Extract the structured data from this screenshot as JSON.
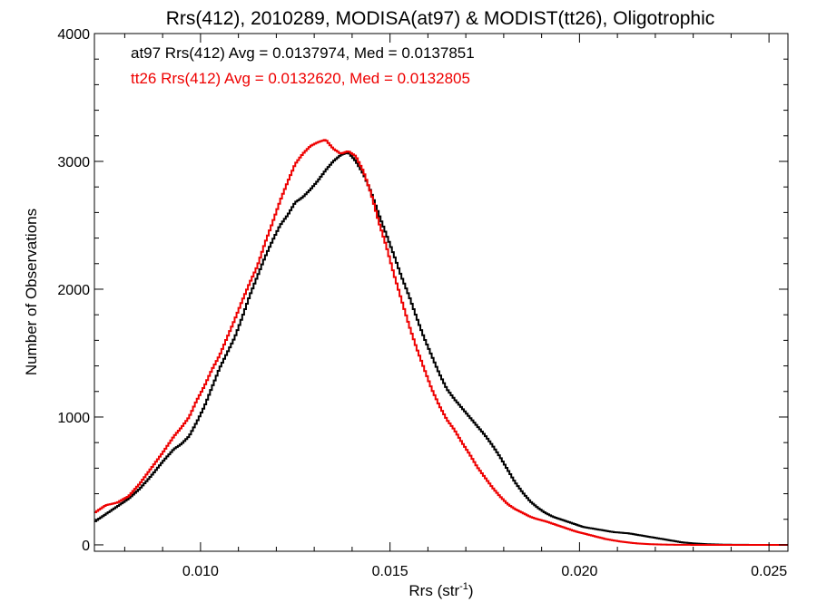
{
  "chart_data": {
    "type": "line",
    "title": "Rrs(412), 2010289, MODISA(at97) & MODIST(tt26), Oligotrophic",
    "xlabel": "Rrs (str",
    "xlabel_sup": "-1",
    "xlabel_close": ")",
    "ylabel": "Number of Observations",
    "xlim": [
      0.0072,
      0.0255
    ],
    "ylim": [
      -50,
      4000
    ],
    "x_ticks": [
      0.01,
      0.015,
      0.02,
      0.025
    ],
    "x_tick_labels": [
      "0.010",
      "0.015",
      "0.020",
      "0.025"
    ],
    "y_ticks": [
      0,
      1000,
      2000,
      3000,
      4000
    ],
    "y_tick_labels": [
      "0",
      "1000",
      "2000",
      "3000",
      "4000"
    ],
    "grid": false,
    "legend_position": "top-left",
    "series": [
      {
        "legend_text": "at97 Rrs(412) Avg = 0.0137974, Med = 0.0137851",
        "color": "#000000",
        "points": [
          [
            0.0072,
            180
          ],
          [
            0.0075,
            240
          ],
          [
            0.0078,
            300
          ],
          [
            0.0081,
            360
          ],
          [
            0.0084,
            440
          ],
          [
            0.0087,
            540
          ],
          [
            0.009,
            650
          ],
          [
            0.0093,
            750
          ],
          [
            0.0095,
            790
          ],
          [
            0.0097,
            850
          ],
          [
            0.0099,
            960
          ],
          [
            0.0101,
            1080
          ],
          [
            0.0103,
            1230
          ],
          [
            0.0105,
            1380
          ],
          [
            0.0107,
            1500
          ],
          [
            0.0109,
            1620
          ],
          [
            0.0111,
            1780
          ],
          [
            0.0113,
            1950
          ],
          [
            0.0115,
            2100
          ],
          [
            0.0117,
            2250
          ],
          [
            0.0119,
            2380
          ],
          [
            0.0121,
            2500
          ],
          [
            0.0123,
            2580
          ],
          [
            0.0125,
            2680
          ],
          [
            0.0127,
            2720
          ],
          [
            0.0129,
            2780
          ],
          [
            0.0131,
            2850
          ],
          [
            0.0133,
            2930
          ],
          [
            0.0135,
            3000
          ],
          [
            0.0137,
            3050
          ],
          [
            0.0139,
            3070
          ],
          [
            0.0141,
            3000
          ],
          [
            0.0143,
            2900
          ],
          [
            0.0145,
            2760
          ],
          [
            0.0147,
            2590
          ],
          [
            0.0149,
            2430
          ],
          [
            0.0151,
            2270
          ],
          [
            0.0153,
            2100
          ],
          [
            0.0155,
            1950
          ],
          [
            0.0157,
            1780
          ],
          [
            0.0159,
            1620
          ],
          [
            0.0161,
            1480
          ],
          [
            0.0163,
            1340
          ],
          [
            0.0165,
            1220
          ],
          [
            0.0167,
            1140
          ],
          [
            0.0169,
            1070
          ],
          [
            0.0171,
            1000
          ],
          [
            0.0173,
            930
          ],
          [
            0.0175,
            860
          ],
          [
            0.0177,
            780
          ],
          [
            0.0179,
            690
          ],
          [
            0.0181,
            590
          ],
          [
            0.0183,
            490
          ],
          [
            0.0185,
            410
          ],
          [
            0.0187,
            340
          ],
          [
            0.0189,
            290
          ],
          [
            0.0191,
            250
          ],
          [
            0.0193,
            220
          ],
          [
            0.0195,
            200
          ],
          [
            0.0197,
            180
          ],
          [
            0.0199,
            160
          ],
          [
            0.0201,
            140
          ],
          [
            0.0203,
            130
          ],
          [
            0.0205,
            120
          ],
          [
            0.0207,
            110
          ],
          [
            0.0209,
            100
          ],
          [
            0.0211,
            95
          ],
          [
            0.0213,
            90
          ],
          [
            0.0215,
            80
          ],
          [
            0.0217,
            70
          ],
          [
            0.0219,
            60
          ],
          [
            0.0221,
            50
          ],
          [
            0.0223,
            40
          ],
          [
            0.0225,
            30
          ],
          [
            0.0227,
            20
          ],
          [
            0.0229,
            14
          ],
          [
            0.0231,
            10
          ],
          [
            0.0233,
            6
          ],
          [
            0.0235,
            4
          ],
          [
            0.0237,
            2
          ],
          [
            0.024,
            1
          ],
          [
            0.0245,
            0
          ],
          [
            0.0255,
            0
          ]
        ]
      },
      {
        "legend_text": "tt26 Rrs(412) Avg = 0.0132620, Med = 0.0132805",
        "color": "#ee0000",
        "points": [
          [
            0.0072,
            250
          ],
          [
            0.0075,
            310
          ],
          [
            0.0078,
            330
          ],
          [
            0.0081,
            380
          ],
          [
            0.0084,
            480
          ],
          [
            0.0087,
            600
          ],
          [
            0.009,
            720
          ],
          [
            0.0093,
            850
          ],
          [
            0.0095,
            920
          ],
          [
            0.0097,
            1000
          ],
          [
            0.0099,
            1130
          ],
          [
            0.0101,
            1240
          ],
          [
            0.0103,
            1370
          ],
          [
            0.0105,
            1480
          ],
          [
            0.0107,
            1620
          ],
          [
            0.0109,
            1760
          ],
          [
            0.0111,
            1910
          ],
          [
            0.0113,
            2050
          ],
          [
            0.0115,
            2180
          ],
          [
            0.0117,
            2360
          ],
          [
            0.0119,
            2520
          ],
          [
            0.0121,
            2690
          ],
          [
            0.0123,
            2840
          ],
          [
            0.0125,
            2980
          ],
          [
            0.0127,
            3060
          ],
          [
            0.0129,
            3120
          ],
          [
            0.0131,
            3150
          ],
          [
            0.0133,
            3170
          ],
          [
            0.0135,
            3100
          ],
          [
            0.0137,
            3060
          ],
          [
            0.0139,
            3080
          ],
          [
            0.0141,
            3040
          ],
          [
            0.0143,
            2920
          ],
          [
            0.0145,
            2750
          ],
          [
            0.0147,
            2530
          ],
          [
            0.0149,
            2340
          ],
          [
            0.0151,
            2120
          ],
          [
            0.0153,
            1920
          ],
          [
            0.0155,
            1720
          ],
          [
            0.0157,
            1540
          ],
          [
            0.0159,
            1380
          ],
          [
            0.0161,
            1220
          ],
          [
            0.0163,
            1090
          ],
          [
            0.0165,
            980
          ],
          [
            0.0167,
            900
          ],
          [
            0.0169,
            800
          ],
          [
            0.0171,
            710
          ],
          [
            0.0173,
            610
          ],
          [
            0.0175,
            530
          ],
          [
            0.0177,
            450
          ],
          [
            0.0179,
            380
          ],
          [
            0.0181,
            320
          ],
          [
            0.0183,
            280
          ],
          [
            0.0185,
            250
          ],
          [
            0.0187,
            220
          ],
          [
            0.0189,
            200
          ],
          [
            0.0191,
            185
          ],
          [
            0.0193,
            165
          ],
          [
            0.0195,
            145
          ],
          [
            0.0197,
            125
          ],
          [
            0.0199,
            105
          ],
          [
            0.0201,
            90
          ],
          [
            0.0203,
            75
          ],
          [
            0.0205,
            60
          ],
          [
            0.0207,
            45
          ],
          [
            0.0209,
            35
          ],
          [
            0.0211,
            25
          ],
          [
            0.0213,
            18
          ],
          [
            0.0215,
            12
          ],
          [
            0.0217,
            8
          ],
          [
            0.0219,
            5
          ],
          [
            0.0221,
            3
          ],
          [
            0.0223,
            2
          ],
          [
            0.0225,
            1
          ],
          [
            0.023,
            0
          ],
          [
            0.0255,
            0
          ]
        ]
      }
    ]
  }
}
